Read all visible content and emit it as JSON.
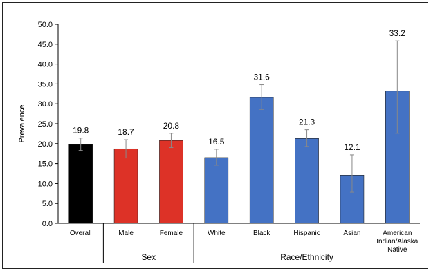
{
  "chart_data": {
    "type": "bar",
    "title": "",
    "ylabel": "Prevalence",
    "ylim": [
      0,
      50
    ],
    "yticks": [
      "0.0",
      "5.0",
      "10.0",
      "15.0",
      "20.0",
      "25.0",
      "30.0",
      "35.0",
      "40.0",
      "45.0",
      "50.0"
    ],
    "grid": false,
    "categories": [
      {
        "label": [
          "Overall"
        ],
        "value": 19.8,
        "value_label": "19.8",
        "ci": [
          18.3,
          21.4
        ],
        "color": "#000000"
      },
      {
        "label": [
          "Male"
        ],
        "value": 18.7,
        "value_label": "18.7",
        "ci": [
          16.4,
          21.0
        ],
        "color": "#dd3227"
      },
      {
        "label": [
          "Female"
        ],
        "value": 20.8,
        "value_label": "20.8",
        "ci": [
          19.0,
          22.6
        ],
        "color": "#dd3227"
      },
      {
        "label": [
          "White"
        ],
        "value": 16.5,
        "value_label": "16.5",
        "ci": [
          14.6,
          18.6
        ],
        "color": "#4472c4"
      },
      {
        "label": [
          "Black"
        ],
        "value": 31.6,
        "value_label": "31.6",
        "ci": [
          28.6,
          34.8
        ],
        "color": "#4472c4"
      },
      {
        "label": [
          "Hispanic"
        ],
        "value": 21.3,
        "value_label": "21.3",
        "ci": [
          19.3,
          23.5
        ],
        "color": "#4472c4"
      },
      {
        "label": [
          "Asian"
        ],
        "value": 12.1,
        "value_label": "12.1",
        "ci": [
          7.8,
          17.2
        ],
        "color": "#4472c4"
      },
      {
        "label": [
          "American",
          "Indian/Alaska",
          "Native"
        ],
        "value": 33.2,
        "value_label": "33.2",
        "ci": [
          22.6,
          45.8
        ],
        "color": "#4472c4"
      }
    ],
    "groups": [
      {
        "label": "Sex",
        "from": 1,
        "to": 2
      },
      {
        "label": "Race/Ethnicity",
        "from": 3,
        "to": 7
      }
    ]
  }
}
